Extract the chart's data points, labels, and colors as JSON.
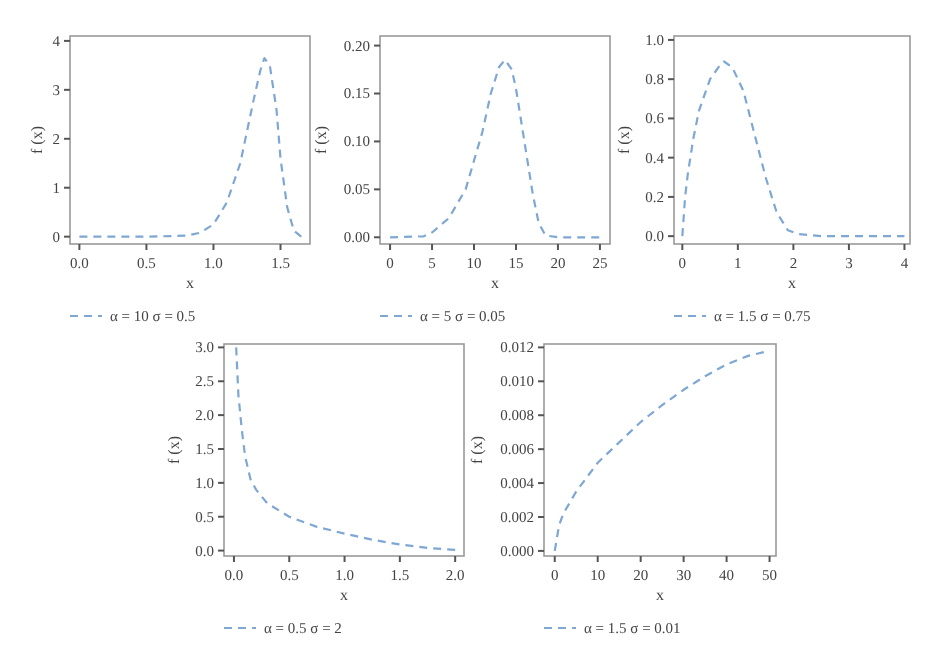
{
  "chart_data": [
    {
      "type": "line",
      "xlabel": "x",
      "ylabel": "f (x)",
      "legend": "bottom",
      "line_style": "dashed",
      "xlim": [
        -0.07,
        1.72
      ],
      "ylim": [
        -0.15,
        4.1
      ],
      "xticks": [
        {
          "value": 0,
          "label": "0.0"
        },
        {
          "value": 0.5,
          "label": "0.5"
        },
        {
          "value": 1,
          "label": "1.0"
        },
        {
          "value": 1.5,
          "label": "1.5"
        }
      ],
      "yticks": [
        0,
        1,
        2,
        3,
        4
      ],
      "x": [
        0,
        0.5,
        0.8,
        0.9,
        1.0,
        1.1,
        1.2,
        1.3,
        1.35,
        1.38,
        1.42,
        1.47,
        1.5,
        1.55,
        1.6,
        1.65,
        1.7
      ],
      "series": [
        {
          "name": "α = 10 σ = 0.5",
          "color": "#7ea7d4",
          "values": [
            0,
            0,
            0.02,
            0.08,
            0.25,
            0.7,
            1.5,
            2.8,
            3.4,
            3.65,
            3.5,
            2.6,
            1.6,
            0.6,
            0.12,
            0.01,
            0
          ]
        }
      ]
    },
    {
      "type": "line",
      "xlabel": "x",
      "ylabel": "f (x)",
      "legend": "bottom",
      "line_style": "dashed",
      "xlim": [
        -1.2,
        26.2
      ],
      "ylim": [
        -0.007,
        0.21
      ],
      "xticks": [
        0,
        5,
        10,
        15,
        20,
        25
      ],
      "yticks": [
        {
          "value": 0,
          "label": "0.00"
        },
        {
          "value": 0.05,
          "label": "0.05"
        },
        {
          "value": 0.1,
          "label": "0.10"
        },
        {
          "value": 0.15,
          "label": "0.15"
        },
        {
          "value": 0.2,
          "label": "0.20"
        }
      ],
      "x": [
        0,
        4,
        5,
        7,
        9,
        10,
        11,
        12,
        13,
        13.7,
        14.5,
        15,
        16,
        17,
        17.7,
        18.5,
        20,
        25
      ],
      "series": [
        {
          "name": "α = 5 σ = 0.05",
          "color": "#7ea7d4",
          "values": [
            0,
            0.001,
            0.005,
            0.02,
            0.05,
            0.08,
            0.11,
            0.15,
            0.178,
            0.185,
            0.175,
            0.155,
            0.1,
            0.045,
            0.015,
            0.002,
            0,
            0
          ]
        }
      ]
    },
    {
      "type": "line",
      "xlabel": "x",
      "ylabel": "f (x)",
      "legend": "bottom",
      "line_style": "dashed",
      "xlim": [
        -0.15,
        4.1
      ],
      "ylim": [
        -0.04,
        1.02
      ],
      "xticks": [
        0,
        1,
        2,
        3,
        4
      ],
      "yticks": [
        {
          "value": 0,
          "label": "0.0"
        },
        {
          "value": 0.2,
          "label": "0.2"
        },
        {
          "value": 0.4,
          "label": "0.4"
        },
        {
          "value": 0.6,
          "label": "0.6"
        },
        {
          "value": 0.8,
          "label": "0.8"
        },
        {
          "value": 1,
          "label": "1.0"
        }
      ],
      "x": [
        0,
        0.05,
        0.1,
        0.2,
        0.3,
        0.5,
        0.7,
        0.75,
        0.9,
        1.1,
        1.3,
        1.5,
        1.7,
        1.9,
        2.1,
        2.5,
        4
      ],
      "series": [
        {
          "name": "α = 1.5 σ = 0.75",
          "color": "#7ea7d4",
          "values": [
            0,
            0.2,
            0.32,
            0.5,
            0.64,
            0.8,
            0.88,
            0.89,
            0.86,
            0.74,
            0.52,
            0.3,
            0.12,
            0.03,
            0.01,
            0,
            0
          ]
        }
      ]
    },
    {
      "type": "line",
      "xlabel": "x",
      "ylabel": "f (x)",
      "legend": "bottom",
      "line_style": "dashed",
      "xlim": [
        -0.09,
        2.08
      ],
      "ylim": [
        -0.08,
        3.05
      ],
      "xticks": [
        {
          "value": 0,
          "label": "0.0"
        },
        {
          "value": 0.5,
          "label": "0.5"
        },
        {
          "value": 1,
          "label": "1.0"
        },
        {
          "value": 1.5,
          "label": "1.5"
        },
        {
          "value": 2,
          "label": "2.0"
        }
      ],
      "yticks": [
        {
          "value": 0,
          "label": "0.0"
        },
        {
          "value": 0.5,
          "label": "0.5"
        },
        {
          "value": 1,
          "label": "1.0"
        },
        {
          "value": 1.5,
          "label": "1.5"
        },
        {
          "value": 2,
          "label": "2.0"
        },
        {
          "value": 2.5,
          "label": "2.5"
        },
        {
          "value": 3,
          "label": "3.0"
        }
      ],
      "x": [
        0.02,
        0.04,
        0.07,
        0.1,
        0.15,
        0.2,
        0.3,
        0.5,
        0.75,
        1,
        1.25,
        1.5,
        1.75,
        2
      ],
      "series": [
        {
          "name": "α = 0.5 σ = 2",
          "color": "#7ea7d4",
          "values": [
            3.0,
            2.3,
            1.8,
            1.4,
            1.05,
            0.9,
            0.7,
            0.5,
            0.35,
            0.25,
            0.16,
            0.09,
            0.04,
            0.01
          ]
        }
      ]
    },
    {
      "type": "line",
      "xlabel": "x",
      "ylabel": "f (x)",
      "legend": "bottom",
      "line_style": "dashed",
      "xlim": [
        -2.5,
        51.5
      ],
      "ylim": [
        -0.0003,
        0.0122
      ],
      "xticks": [
        0,
        10,
        20,
        30,
        40,
        50
      ],
      "yticks": [
        {
          "value": 0,
          "label": "0.000"
        },
        {
          "value": 0.002,
          "label": "0.002"
        },
        {
          "value": 0.004,
          "label": "0.004"
        },
        {
          "value": 0.006,
          "label": "0.006"
        },
        {
          "value": 0.008,
          "label": "0.008"
        },
        {
          "value": 0.01,
          "label": "0.010"
        },
        {
          "value": 0.012,
          "label": "0.012"
        }
      ],
      "x": [
        0,
        1,
        2,
        5,
        10,
        15,
        20,
        25,
        30,
        35,
        40,
        45,
        50
      ],
      "series": [
        {
          "name": "α = 1.5 σ = 0.01",
          "color": "#7ea7d4",
          "values": [
            0,
            0.0015,
            0.0022,
            0.0035,
            0.0052,
            0.0064,
            0.0076,
            0.0086,
            0.0095,
            0.0103,
            0.011,
            0.0115,
            0.0118
          ]
        }
      ]
    }
  ]
}
